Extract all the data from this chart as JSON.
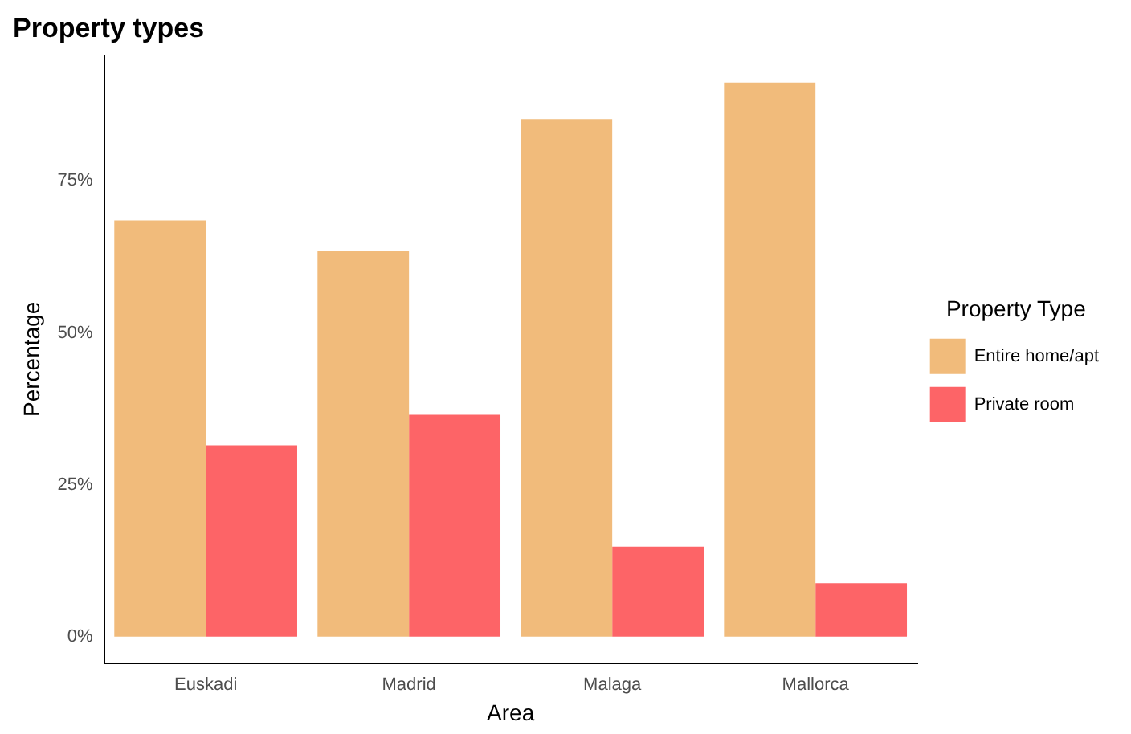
{
  "chart_data": {
    "type": "bar",
    "title": "Property types",
    "xlabel": "Area",
    "ylabel": "Percentage",
    "legend_title": "Property Type",
    "categories": [
      "Euskadi",
      "Madrid",
      "Malaga",
      "Mallorca"
    ],
    "series": [
      {
        "name": "Entire home/apt",
        "color": "#f1bb7b",
        "values": [
          68.5,
          63.5,
          85.2,
          91.2
        ]
      },
      {
        "name": "Private room",
        "color": "#fd6467",
        "values": [
          31.5,
          36.5,
          14.8,
          8.8
        ]
      }
    ],
    "ylim": [
      -4.4,
      95.7
    ],
    "yticks": [
      {
        "value": 0,
        "label": "0%"
      },
      {
        "value": 25,
        "label": "25%"
      },
      {
        "value": 50,
        "label": "50%"
      },
      {
        "value": 75,
        "label": "75%"
      }
    ],
    "grid": false,
    "legend": "right"
  }
}
